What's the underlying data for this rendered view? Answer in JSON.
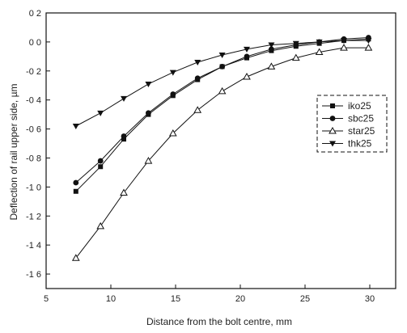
{
  "chart_data": {
    "type": "line",
    "title": "",
    "xlabel": "Distance from the bolt centre, mm",
    "ylabel": "Deflection of rail upper side, µm",
    "xlim": [
      5,
      32
    ],
    "ylim": [
      -1.7,
      0.2
    ],
    "x_ticks": [
      5,
      10,
      15,
      20,
      25,
      30
    ],
    "y_ticks": [
      0.2,
      0.0,
      -0.2,
      -0.4,
      -0.6,
      -0.8,
      -1.0,
      -1.2,
      -1.4,
      -1.6
    ],
    "x_tick_labels": [
      "5",
      "10",
      "15",
      "20",
      "25",
      "30"
    ],
    "y_tick_labels": [
      "0 2",
      "0 0",
      "-0 2",
      "-0 4",
      "-0 6",
      "-0 8",
      "-1 0",
      "-1 2",
      "-1 4",
      "-1 6"
    ],
    "grid": false,
    "legend_position": "right",
    "x": [
      7.3,
      9.2,
      11.0,
      12.9,
      14.8,
      16.7,
      18.6,
      20.5,
      22.4,
      24.3,
      26.1,
      28.0,
      29.9
    ],
    "series": [
      {
        "name": "iko25",
        "marker": "square",
        "values": [
          -1.03,
          -0.86,
          -0.67,
          -0.5,
          -0.37,
          -0.26,
          -0.17,
          -0.11,
          -0.06,
          -0.03,
          -0.01,
          0.01,
          0.02
        ]
      },
      {
        "name": "sbc25",
        "marker": "circle",
        "values": [
          -0.97,
          -0.82,
          -0.65,
          -0.49,
          -0.36,
          -0.25,
          -0.17,
          -0.1,
          -0.05,
          -0.02,
          0.0,
          0.02,
          0.03
        ]
      },
      {
        "name": "star25",
        "marker": "triangle-up",
        "values": [
          -1.49,
          -1.27,
          -1.04,
          -0.82,
          -0.63,
          -0.47,
          -0.34,
          -0.24,
          -0.17,
          -0.11,
          -0.07,
          -0.04,
          -0.04
        ]
      },
      {
        "name": "thk25",
        "marker": "triangle-down",
        "values": [
          -0.58,
          -0.49,
          -0.39,
          -0.29,
          -0.21,
          -0.14,
          -0.09,
          -0.05,
          -0.02,
          -0.01,
          0.0,
          0.01,
          0.01
        ]
      }
    ]
  }
}
